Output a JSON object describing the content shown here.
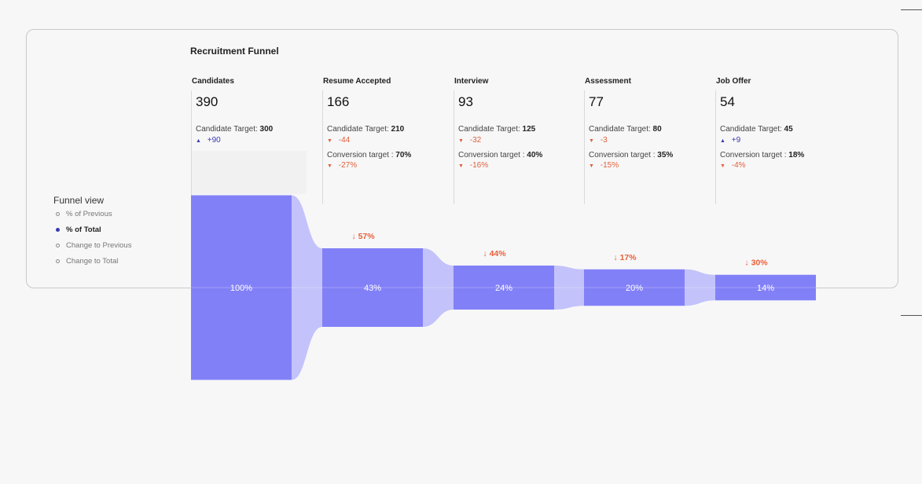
{
  "title": "Recruitment Funnel",
  "colors": {
    "bar": "#8280f7",
    "connector": "#c3c2fa",
    "positive": "#3a3ab0",
    "negative": "#e0603a"
  },
  "funnel_view": {
    "title": "Funnel view",
    "options": [
      {
        "label": "% of Previous",
        "selected": false
      },
      {
        "label": "% of Total",
        "selected": true
      },
      {
        "label": "Change to Previous",
        "selected": false
      },
      {
        "label": "Change to Total",
        "selected": false
      }
    ]
  },
  "stages": [
    {
      "label": "Candidates",
      "count": "390",
      "target_label": "Candidate Target:",
      "target_value": "300",
      "target_delta": "+90",
      "target_delta_dir": "up",
      "pct_total": "100%",
      "drop": ""
    },
    {
      "label": "Resume Accepted",
      "count": "166",
      "target_label": "Candidate Target:",
      "target_value": "210",
      "target_delta": "-44",
      "target_delta_dir": "down",
      "conv_label": "Conversion target :",
      "conv_value": "70%",
      "conv_delta": "-27%",
      "conv_delta_dir": "down",
      "pct_total": "43%",
      "drop": "↓ 57%"
    },
    {
      "label": "Interview",
      "count": "93",
      "target_label": "Candidate Target:",
      "target_value": "125",
      "target_delta": "-32",
      "target_delta_dir": "down",
      "conv_label": "Conversion target :",
      "conv_value": "40%",
      "conv_delta": "-16%",
      "conv_delta_dir": "down",
      "pct_total": "24%",
      "drop": "↓ 44%"
    },
    {
      "label": "Assessment",
      "count": "77",
      "target_label": "Candidate Target:",
      "target_value": "80",
      "target_delta": "-3",
      "target_delta_dir": "down",
      "conv_label": "Conversion target :",
      "conv_value": "35%",
      "conv_delta": "-15%",
      "conv_delta_dir": "down",
      "pct_total": "20%",
      "drop": "↓ 17%"
    },
    {
      "label": "Job Offer",
      "count": "54",
      "target_label": "Candidate Target:",
      "target_value": "45",
      "target_delta": "+9",
      "target_delta_dir": "up",
      "conv_label": "Conversion target :",
      "conv_value": "18%",
      "conv_delta": "-4%",
      "conv_delta_dir": "down",
      "pct_total": "14%",
      "drop": "↓ 30%"
    }
  ],
  "chart_data": {
    "type": "bar",
    "categories": [
      "Candidates",
      "Resume Accepted",
      "Interview",
      "Assessment",
      "Job Offer"
    ],
    "values": [
      390,
      166,
      93,
      77,
      54
    ],
    "pct_of_total": [
      100,
      43,
      24,
      20,
      14
    ],
    "pct_drop": [
      null,
      57,
      44,
      17,
      30
    ]
  }
}
